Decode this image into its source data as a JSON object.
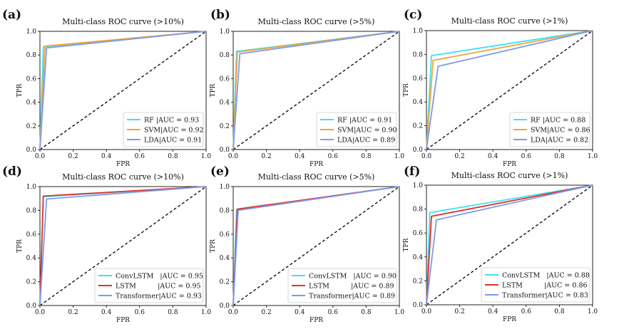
{
  "figure": {
    "xlabel": "FPR",
    "ylabel": "TPR"
  },
  "chart_data": [
    {
      "type": "line",
      "panel": "(a)",
      "title": "Multi-class ROC curve (>10%)",
      "xlabel": "FPR",
      "ylabel": "TPR",
      "xlim": [
        0,
        1
      ],
      "ylim": [
        0,
        1
      ],
      "xticks": [
        "0.0",
        "0.2",
        "0.4",
        "0.6",
        "0.8",
        "1.0"
      ],
      "yticks": [
        "0.0",
        "0.2",
        "0.4",
        "0.6",
        "0.8",
        "1.0"
      ],
      "legend_position": "bottom-right",
      "series": [
        {
          "name": "RF",
          "label": "RF |AUC = 0.93",
          "color": "#39e3f2",
          "x": [
            0,
            0.02,
            1
          ],
          "y": [
            0,
            0.87,
            1
          ]
        },
        {
          "name": "SVM",
          "label": "SVM|AUC = 0.92",
          "color": "#f2a33a",
          "x": [
            0,
            0.03,
            1
          ],
          "y": [
            0,
            0.875,
            1
          ]
        },
        {
          "name": "LDA",
          "label": "LDA|AUC = 0.91",
          "color": "#7b9bec",
          "x": [
            0,
            0.04,
            1
          ],
          "y": [
            0,
            0.86,
            1
          ]
        }
      ]
    },
    {
      "type": "line",
      "panel": "(b)",
      "title": "Multi-class ROC curve (>5%)",
      "xlabel": "FPR",
      "ylabel": "TPR",
      "xlim": [
        0,
        1
      ],
      "ylim": [
        0,
        1
      ],
      "xticks": [
        "0.0",
        "0.2",
        "0.4",
        "0.6",
        "0.8",
        "1.0"
      ],
      "yticks": [
        "0.0",
        "0.2",
        "0.4",
        "0.6",
        "0.8",
        "1.0"
      ],
      "legend_position": "bottom-right",
      "series": [
        {
          "name": "RF",
          "label": "RF |AUC = 0.91",
          "color": "#39e3f2",
          "x": [
            0,
            0.02,
            1
          ],
          "y": [
            0,
            0.83,
            1
          ]
        },
        {
          "name": "SVM",
          "label": "SVM|AUC = 0.90",
          "color": "#f2a33a",
          "x": [
            0,
            0.025,
            1
          ],
          "y": [
            0,
            0.825,
            1
          ]
        },
        {
          "name": "LDA",
          "label": "LDA|AUC = 0.89",
          "color": "#7b9bec",
          "x": [
            0,
            0.04,
            1
          ],
          "y": [
            0,
            0.81,
            1
          ]
        }
      ]
    },
    {
      "type": "line",
      "panel": "(c)",
      "title": "Multi-class ROC curve (>1%)",
      "xlabel": "FPR",
      "ylabel": "TPR",
      "xlim": [
        0,
        1
      ],
      "ylim": [
        0,
        1
      ],
      "xticks": [
        "0.0",
        "0.2",
        "0.4",
        "0.6",
        "0.8",
        "1.0"
      ],
      "yticks": [
        "0.0",
        "0.2",
        "0.4",
        "0.6",
        "0.8",
        "1.0"
      ],
      "legend_position": "bottom-right",
      "series": [
        {
          "name": "RF",
          "label": "RF |AUC = 0.88",
          "color": "#39e3f2",
          "x": [
            0,
            0.03,
            1
          ],
          "y": [
            0,
            0.79,
            1
          ]
        },
        {
          "name": "SVM",
          "label": "SVM|AUC = 0.86",
          "color": "#f2a33a",
          "x": [
            0,
            0.04,
            1
          ],
          "y": [
            0,
            0.75,
            1
          ]
        },
        {
          "name": "LDA",
          "label": "LDA|AUC = 0.82",
          "color": "#7b9bec",
          "x": [
            0,
            0.07,
            1
          ],
          "y": [
            0,
            0.7,
            1
          ]
        }
      ]
    },
    {
      "type": "line",
      "panel": "(d)",
      "title": "Multi-class ROC curve (>10%)",
      "xlabel": "FPR",
      "ylabel": "TPR",
      "xlim": [
        0,
        1
      ],
      "ylim": [
        0,
        1
      ],
      "xticks": [
        "0.0",
        "0.2",
        "0.4",
        "0.6",
        "0.8",
        "1.0"
      ],
      "yticks": [
        "0.0",
        "0.2",
        "0.4",
        "0.6",
        "0.8",
        "1.0"
      ],
      "legend_position": "bottom-right",
      "series": [
        {
          "name": "ConvLSTM",
          "label": "ConvLSTM   |AUC = 0.95",
          "color": "#39e3f2",
          "x": [
            0,
            0.02,
            1
          ],
          "y": [
            0,
            0.915,
            1
          ]
        },
        {
          "name": "LSTM",
          "label": "LSTM          |AUC = 0.95",
          "color": "#e0302a",
          "x": [
            0,
            0.02,
            1
          ],
          "y": [
            0,
            0.92,
            1
          ]
        },
        {
          "name": "Transformer",
          "label": "Transformer|AUC = 0.93",
          "color": "#7b9bec",
          "x": [
            0,
            0.04,
            1
          ],
          "y": [
            0,
            0.895,
            1
          ]
        }
      ]
    },
    {
      "type": "line",
      "panel": "(e)",
      "title": "Multi-class ROC curve (>5%)",
      "xlabel": "FPR",
      "ylabel": "TPR",
      "xlim": [
        0,
        1
      ],
      "ylim": [
        0,
        1
      ],
      "xticks": [
        "0.0",
        "0.2",
        "0.4",
        "0.6",
        "0.8",
        "1.0"
      ],
      "yticks": [
        "0.0",
        "0.2",
        "0.4",
        "0.6",
        "0.8",
        "1.0"
      ],
      "legend_position": "bottom-right",
      "series": [
        {
          "name": "ConvLSTM",
          "label": "ConvLSTM   |AUC = 0.90",
          "color": "#39e3f2",
          "x": [
            0,
            0.02,
            1
          ],
          "y": [
            0,
            0.805,
            1
          ]
        },
        {
          "name": "LSTM",
          "label": "LSTM          |AUC = 0.89",
          "color": "#e0302a",
          "x": [
            0,
            0.025,
            1
          ],
          "y": [
            0,
            0.81,
            1
          ]
        },
        {
          "name": "Transformer",
          "label": "Transformer|AUC = 0.89",
          "color": "#7b9bec",
          "x": [
            0,
            0.03,
            1
          ],
          "y": [
            0,
            0.8,
            1
          ]
        }
      ]
    },
    {
      "type": "line",
      "panel": "(f)",
      "title": "Multi-class ROC curve (>1%)",
      "xlabel": "FPR",
      "ylabel": "TPR",
      "xlim": [
        0,
        1
      ],
      "ylim": [
        0,
        1
      ],
      "xticks": [
        "0.0",
        "0.2",
        "0.4",
        "0.6",
        "0.8",
        "1.0"
      ],
      "yticks": [
        "0.0",
        "0.2",
        "0.4",
        "0.6",
        "0.8",
        "1.0"
      ],
      "legend_position": "bottom-right",
      "series": [
        {
          "name": "ConvLSTM",
          "label": "ConvLSTM   |AUC = 0.88",
          "color": "#39e3f2",
          "x": [
            0,
            0.02,
            1
          ],
          "y": [
            0,
            0.77,
            1
          ]
        },
        {
          "name": "LSTM",
          "label": "LSTM          |AUC = 0.86",
          "color": "#e0302a",
          "x": [
            0,
            0.03,
            1
          ],
          "y": [
            0,
            0.74,
            1
          ]
        },
        {
          "name": "Transformer",
          "label": "Transformer|AUC = 0.83",
          "color": "#7b9bec",
          "x": [
            0,
            0.06,
            1
          ],
          "y": [
            0,
            0.71,
            1
          ]
        }
      ]
    }
  ]
}
